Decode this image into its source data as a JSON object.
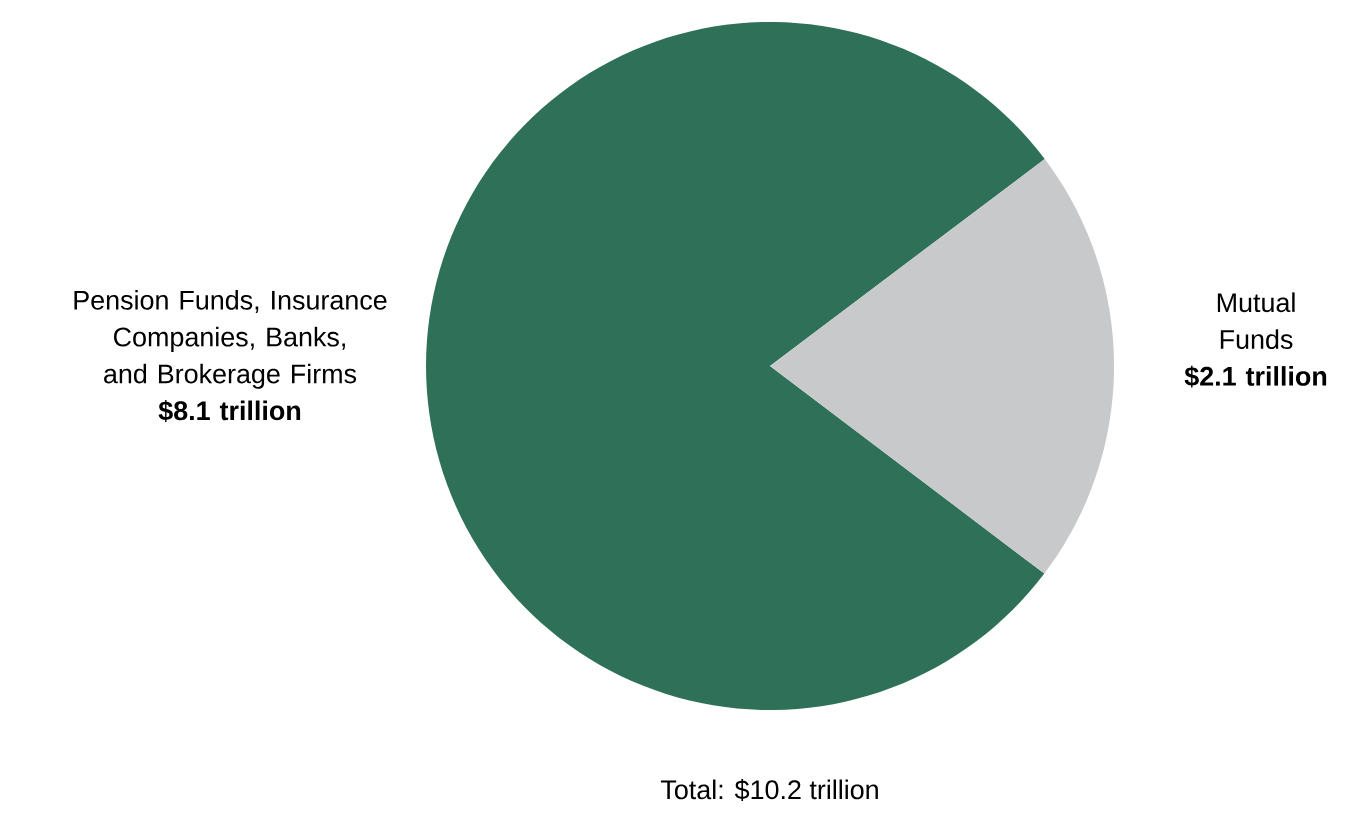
{
  "chart_data": {
    "type": "pie",
    "categories": [
      "Pension Funds, Insurance Companies, Banks, and Brokerage Firms",
      "Mutual Funds"
    ],
    "values": [
      8.1,
      2.1
    ],
    "colors": [
      "#2e7158",
      "#c8c9cb"
    ],
    "value_labels": [
      "$8.1 trillion",
      "$2.1 trillion"
    ],
    "annotations": [
      "Total: $10.2 trillion"
    ]
  }
}
